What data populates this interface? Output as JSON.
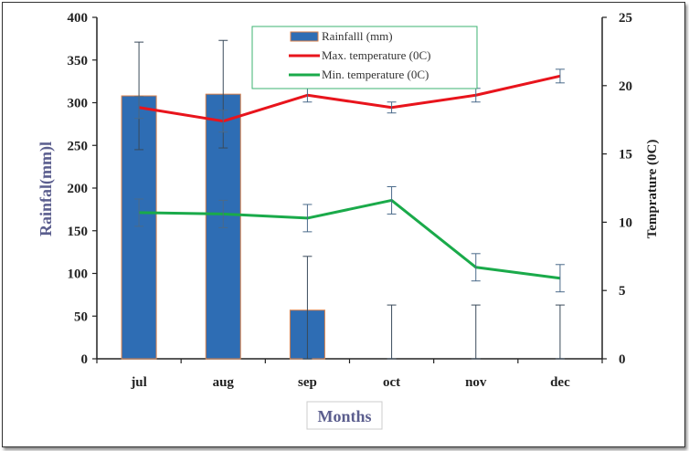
{
  "chart_data": {
    "type": "bar",
    "categories": [
      "jul",
      "aug",
      "sep",
      "oct",
      "nov",
      "dec"
    ],
    "xlabel": "Months",
    "ylabel": "Rainfal(mm)l",
    "y2label": "Temprature (0C)",
    "ylim": [
      0,
      400
    ],
    "y2lim": [
      0,
      25
    ],
    "yticks": [
      "0",
      "50",
      "100",
      "150",
      "200",
      "250",
      "300",
      "350",
      "400"
    ],
    "y2ticks": [
      "0",
      "5",
      "10",
      "15",
      "20",
      "25"
    ],
    "legend_position": "top-center",
    "grid": false,
    "series": [
      {
        "name": "Rainfalll (mm)",
        "type": "bar",
        "axis": "left",
        "color": "#2e6db4",
        "values": [
          308,
          310,
          57,
          0,
          0,
          0
        ],
        "error": [
          63,
          63,
          63,
          63,
          63,
          63
        ]
      },
      {
        "name": "Max. temperature (0C)",
        "type": "line",
        "axis": "right",
        "color": "#e8141c",
        "values": [
          18.4,
          17.4,
          19.3,
          18.4,
          19.3,
          20.7
        ],
        "error": [
          0.8,
          0.8,
          0.5,
          0.4,
          0.5,
          0.5
        ]
      },
      {
        "name": "Min. temperature (0C)",
        "type": "line",
        "axis": "right",
        "color": "#1aaa4a",
        "values": [
          10.7,
          10.6,
          10.3,
          11.6,
          6.7,
          5.9
        ],
        "error": [
          1.0,
          1.0,
          1.0,
          1.0,
          1.0,
          1.0
        ]
      }
    ]
  }
}
